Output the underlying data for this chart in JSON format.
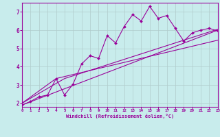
{
  "xlabel": "Windchill (Refroidissement éolien,°C)",
  "bg_color": "#c8ecec",
  "line_color": "#990099",
  "grid_color": "#b0cccc",
  "xlim": [
    0,
    23
  ],
  "ylim": [
    1.8,
    7.5
  ],
  "x_ticks": [
    0,
    1,
    2,
    3,
    4,
    5,
    6,
    7,
    8,
    9,
    10,
    11,
    12,
    13,
    14,
    15,
    16,
    17,
    18,
    19,
    20,
    21,
    22,
    23
  ],
  "y_ticks": [
    2,
    3,
    4,
    5,
    6,
    7
  ],
  "data_x": [
    0,
    1,
    2,
    3,
    4,
    5,
    6,
    7,
    8,
    9,
    10,
    11,
    12,
    13,
    14,
    15,
    16,
    17,
    18,
    19,
    20,
    21,
    22,
    23
  ],
  "data_y": [
    1.9,
    2.1,
    2.35,
    2.45,
    3.35,
    2.45,
    3.05,
    4.15,
    4.6,
    4.45,
    5.7,
    5.3,
    6.2,
    6.85,
    6.5,
    7.3,
    6.65,
    6.8,
    6.1,
    5.4,
    5.85,
    6.0,
    6.1,
    5.95
  ],
  "line1_x": [
    0,
    23
  ],
  "line1_y": [
    1.9,
    6.0
  ],
  "line2_x": [
    0,
    5,
    23
  ],
  "line2_y": [
    2.0,
    3.35,
    6.05
  ],
  "line3_x": [
    0,
    4,
    23
  ],
  "line3_y": [
    2.0,
    3.35,
    5.45
  ]
}
